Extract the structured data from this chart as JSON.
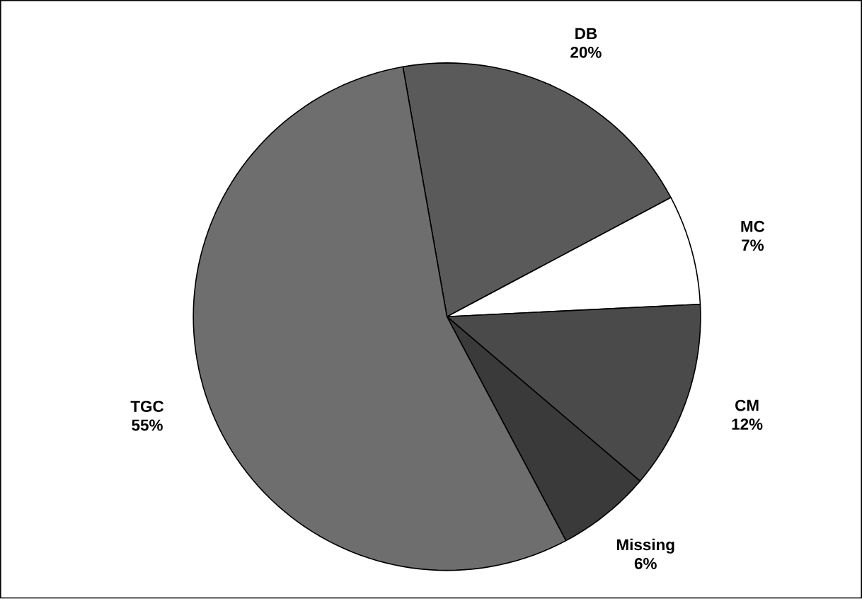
{
  "chart_data": {
    "type": "pie",
    "categories": [
      "DB",
      "MC",
      "CM",
      "Missing",
      "TGC"
    ],
    "values": [
      20,
      7,
      12,
      6,
      55
    ],
    "value_labels": [
      "20%",
      "7%",
      "12%",
      "6%",
      "55%"
    ],
    "colors": [
      "#5a5a5a",
      "#ffffff",
      "#4a4a4a",
      "#3a3a3a",
      "#6e6e6e"
    ]
  }
}
